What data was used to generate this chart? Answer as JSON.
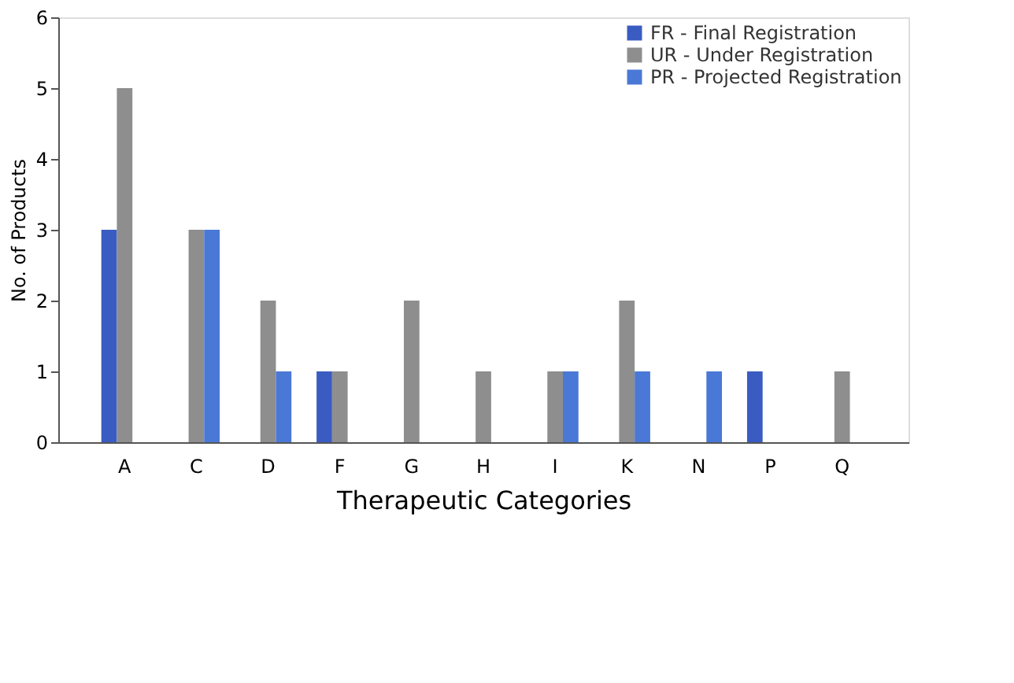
{
  "chart_data": {
    "type": "bar",
    "xlabel": "Therapeutic Categories",
    "ylabel": "No. of Products",
    "categories": [
      "A",
      "C",
      "D",
      "F",
      "G",
      "H",
      "I",
      "K",
      "N",
      "P",
      "Q"
    ],
    "series": [
      {
        "name": "FR - Final Registration",
        "color": "#3a5cc2",
        "values": [
          3,
          0,
          0,
          1,
          0,
          0,
          0,
          0,
          0,
          1,
          0
        ]
      },
      {
        "name": "UR - Under Registration",
        "color": "#8e8e8e",
        "values": [
          5,
          3,
          2,
          1,
          2,
          1,
          1,
          2,
          0,
          0,
          1
        ]
      },
      {
        "name": "PR - Projected Registration",
        "color": "#4a78d6",
        "values": [
          0,
          3,
          1,
          0,
          0,
          0,
          1,
          1,
          1,
          0,
          0
        ]
      }
    ],
    "ylim": [
      0,
      6
    ],
    "yticks": [
      0,
      1,
      2,
      3,
      4,
      5,
      6
    ],
    "grid": false,
    "legend": "top right"
  }
}
